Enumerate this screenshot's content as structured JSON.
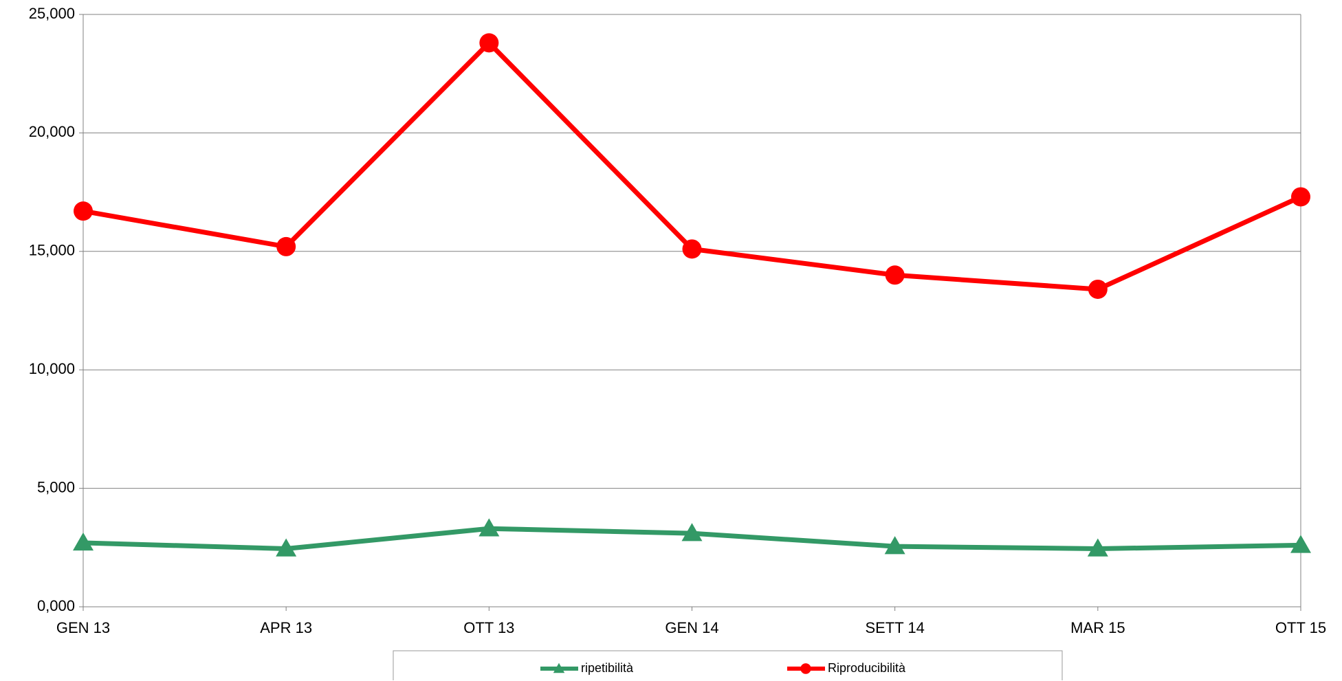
{
  "chart_data": {
    "type": "line",
    "categories": [
      "GEN 13",
      "APR 13",
      "OTT 13",
      "GEN 14",
      "SETT 14",
      "MAR 15",
      "OTT 15"
    ],
    "series": [
      {
        "name": "ripetibilità",
        "color": "#339966",
        "marker": "triangle",
        "values": [
          2.7,
          2.45,
          3.3,
          3.1,
          2.55,
          2.45,
          2.6
        ]
      },
      {
        "name": "Riproducibilità",
        "color": "#ff0000",
        "marker": "circle",
        "values": [
          16.7,
          15.2,
          23.8,
          15.1,
          14.0,
          13.4,
          17.3
        ]
      }
    ],
    "ylim": [
      0,
      25
    ],
    "yticks": [
      {
        "value": 0,
        "label": "0,000"
      },
      {
        "value": 5,
        "label": "5,000"
      },
      {
        "value": 10,
        "label": "10,000"
      },
      {
        "value": 15,
        "label": "15,000"
      },
      {
        "value": 20,
        "label": "20,000"
      },
      {
        "value": 25,
        "label": "25,000"
      }
    ],
    "grid": true
  }
}
